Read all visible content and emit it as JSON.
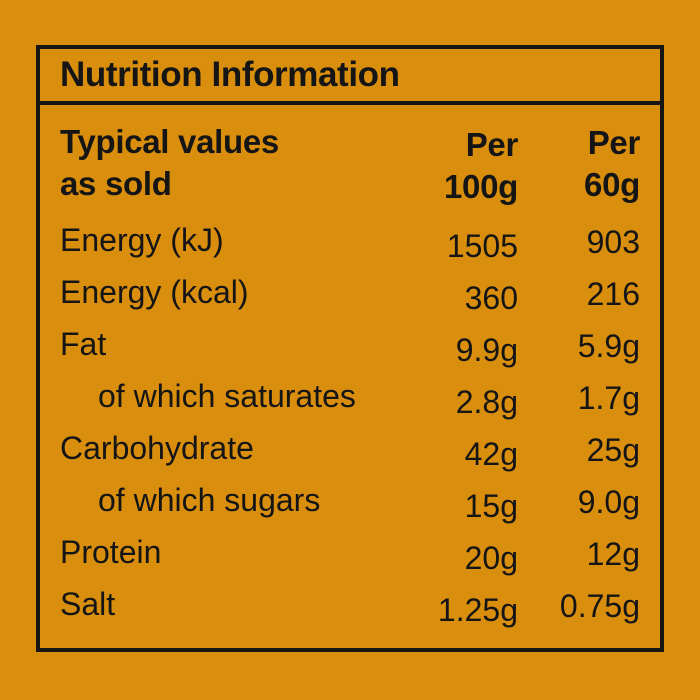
{
  "colors": {
    "background": "#D98E0E",
    "ink": "#151515"
  },
  "label": {
    "title": "Nutrition Information",
    "header": {
      "typical_line1": "Typical values",
      "typical_line2": "as sold",
      "per100_line1": "Per",
      "per100_line2": "100g",
      "per60_line1": "Per",
      "per60_line2": "60g"
    },
    "rows": [
      {
        "name": "Energy (kJ)",
        "per100": "1505",
        "per60": "903"
      },
      {
        "name": "Energy (kcal)",
        "per100": "360",
        "per60": "216"
      },
      {
        "name": "Fat",
        "per100": "9.9g",
        "per60": "5.9g"
      },
      {
        "name": "of which saturates",
        "per100": "2.8g",
        "per60": "1.7g"
      },
      {
        "name": "Carbohydrate",
        "per100": "42g",
        "per60": "25g"
      },
      {
        "name": "of which sugars",
        "per100": "15g",
        "per60": "9.0g"
      },
      {
        "name": "Protein",
        "per100": "20g",
        "per60": "12g"
      },
      {
        "name": "Salt",
        "per100": "1.25g",
        "per60": "0.75g"
      }
    ]
  }
}
